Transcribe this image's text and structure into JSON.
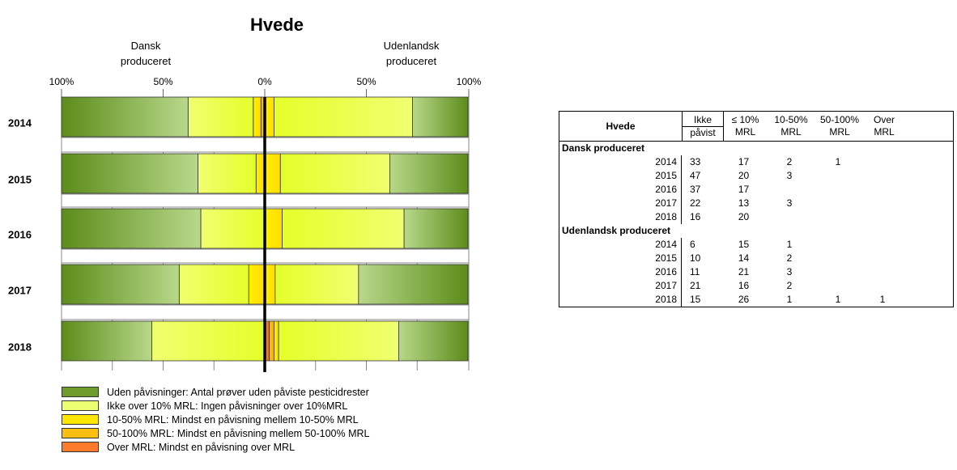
{
  "chart_data": {
    "type": "bar",
    "title": "Hvede",
    "left_label": [
      "Dansk",
      "produceret"
    ],
    "right_label": [
      "Udenlandsk",
      "produceret"
    ],
    "axis_ticks": [
      "100%",
      "50%",
      "0%",
      "50%",
      "100%"
    ],
    "categories": [
      "2014",
      "2015",
      "2016",
      "2017",
      "2018"
    ],
    "groups": [
      "Dansk produceret",
      "Udenlandsk produceret"
    ],
    "series": [
      {
        "name": "Uden påvisninger",
        "dansk": [
          33,
          47,
          37,
          22,
          16
        ],
        "udenlandsk": [
          6,
          10,
          11,
          21,
          15
        ]
      },
      {
        "name": "Ikke over 10% MRL",
        "dansk": [
          17,
          20,
          17,
          13,
          20
        ],
        "udenlandsk": [
          15,
          14,
          21,
          16,
          26
        ]
      },
      {
        "name": "10-50% MRL",
        "dansk": [
          2,
          3,
          0,
          3,
          0
        ],
        "udenlandsk": [
          1,
          2,
          3,
          2,
          1
        ]
      },
      {
        "name": "50-100% MRL",
        "dansk": [
          1,
          0,
          0,
          0,
          0
        ],
        "udenlandsk": [
          0,
          0,
          0,
          0,
          1
        ]
      },
      {
        "name": "Over MRL",
        "dansk": [
          0,
          0,
          0,
          0,
          0
        ],
        "udenlandsk": [
          0,
          0,
          0,
          0,
          1
        ]
      }
    ],
    "colors": {
      "green_dark": "#5a8a1a",
      "green_light": "#b9d98a",
      "yellow_green": "#e8ff3c",
      "yellow": "#ffe600",
      "orange": "#ffb800",
      "red_orange": "#ff6a1f"
    }
  },
  "legend": [
    {
      "label": "Uden påvisninger: Antal prøver uden påviste pesticidrester",
      "color": "#6f9a2c"
    },
    {
      "label": "Ikke over 10% MRL: Ingen påvisninger over 10%MRL",
      "color": "#ecff70"
    },
    {
      "label": "10-50% MRL: Mindst en påvisning mellem 10-50% MRL",
      "color": "#ffe600"
    },
    {
      "label": "50-100% MRL: Mindst en påvisning mellem 50-100% MRL",
      "color": "#ffbf10"
    },
    {
      "label": "Over MRL:  Mindst en påvisning over MRL",
      "color": "#ff7a2a"
    }
  ],
  "table": {
    "title": "Hvede",
    "headers": [
      [
        "Ikke",
        "påvist"
      ],
      [
        "≤ 10%",
        "MRL"
      ],
      [
        "10-50%",
        "MRL"
      ],
      [
        "50-100%",
        "MRL"
      ],
      [
        "Over",
        "MRL"
      ]
    ],
    "groups": [
      {
        "name": "Dansk produceret",
        "rows": [
          {
            "year": "2014",
            "values": [
              "33",
              "17",
              "2",
              "1",
              ""
            ]
          },
          {
            "year": "2015",
            "values": [
              "47",
              "20",
              "3",
              "",
              ""
            ]
          },
          {
            "year": "2016",
            "values": [
              "37",
              "17",
              "",
              "",
              ""
            ]
          },
          {
            "year": "2017",
            "values": [
              "22",
              "13",
              "3",
              "",
              ""
            ]
          },
          {
            "year": "2018",
            "values": [
              "16",
              "20",
              "",
              "",
              ""
            ]
          }
        ]
      },
      {
        "name": "Udenlandsk produceret",
        "rows": [
          {
            "year": "2014",
            "values": [
              "6",
              "15",
              "1",
              "",
              ""
            ]
          },
          {
            "year": "2015",
            "values": [
              "10",
              "14",
              "2",
              "",
              ""
            ]
          },
          {
            "year": "2016",
            "values": [
              "11",
              "21",
              "3",
              "",
              ""
            ]
          },
          {
            "year": "2017",
            "values": [
              "21",
              "16",
              "2",
              "",
              ""
            ]
          },
          {
            "year": "2018",
            "values": [
              "15",
              "26",
              "1",
              "1",
              "1"
            ]
          }
        ]
      }
    ]
  }
}
